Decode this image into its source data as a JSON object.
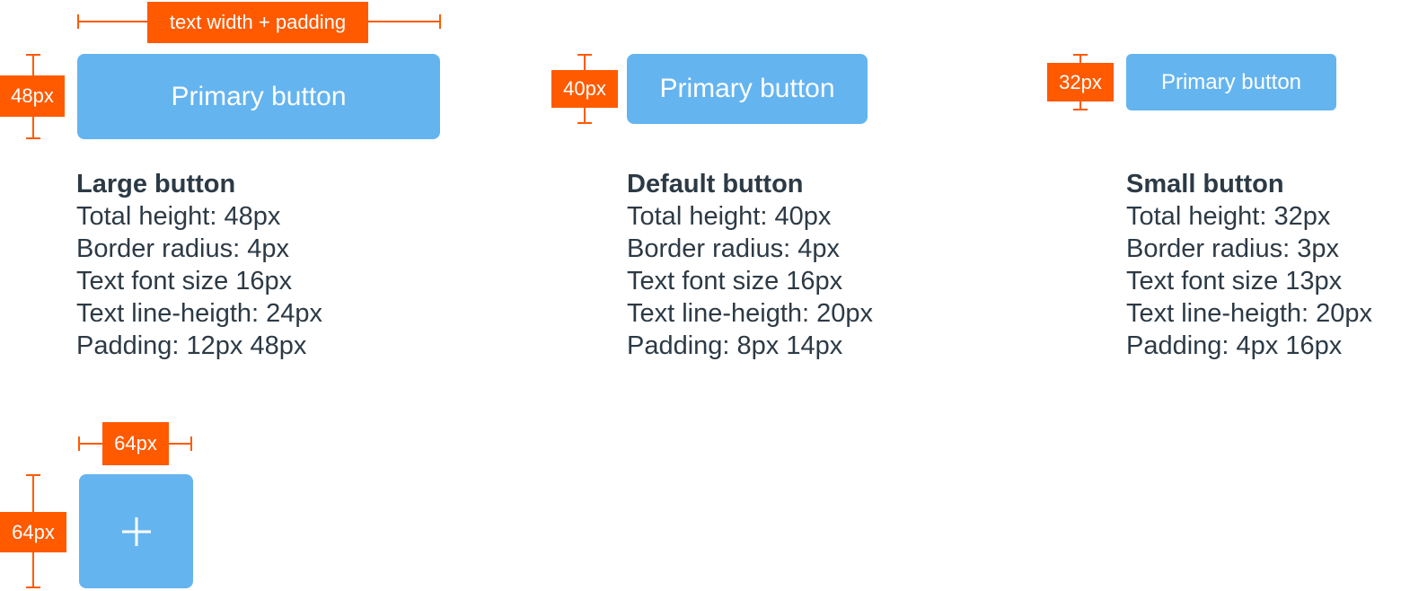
{
  "header_dimension": "text width + padding",
  "buttons": [
    {
      "label": "Primary button",
      "height_tag": "48px",
      "title": "Large button",
      "specs": [
        "Total height: 48px",
        "Border radius: 4px",
        "Text font size 16px",
        "Text line-heigth: 24px",
        "Padding: 12px 48px"
      ]
    },
    {
      "label": "Primary button",
      "height_tag": "40px",
      "title": "Default button",
      "specs": [
        "Total height: 40px",
        "Border radius: 4px",
        "Text font size 16px",
        "Text line-heigth: 20px",
        "Padding: 8px 14px"
      ]
    },
    {
      "label": "Primary button",
      "height_tag": "32px",
      "title": "Small button",
      "specs": [
        "Total height: 32px",
        "Border radius: 3px",
        "Text font size 13px",
        "Text line-heigth: 20px",
        "Padding: 4px 16px"
      ]
    }
  ],
  "icon_button": {
    "width_tag": "64px",
    "height_tag": "64px"
  }
}
